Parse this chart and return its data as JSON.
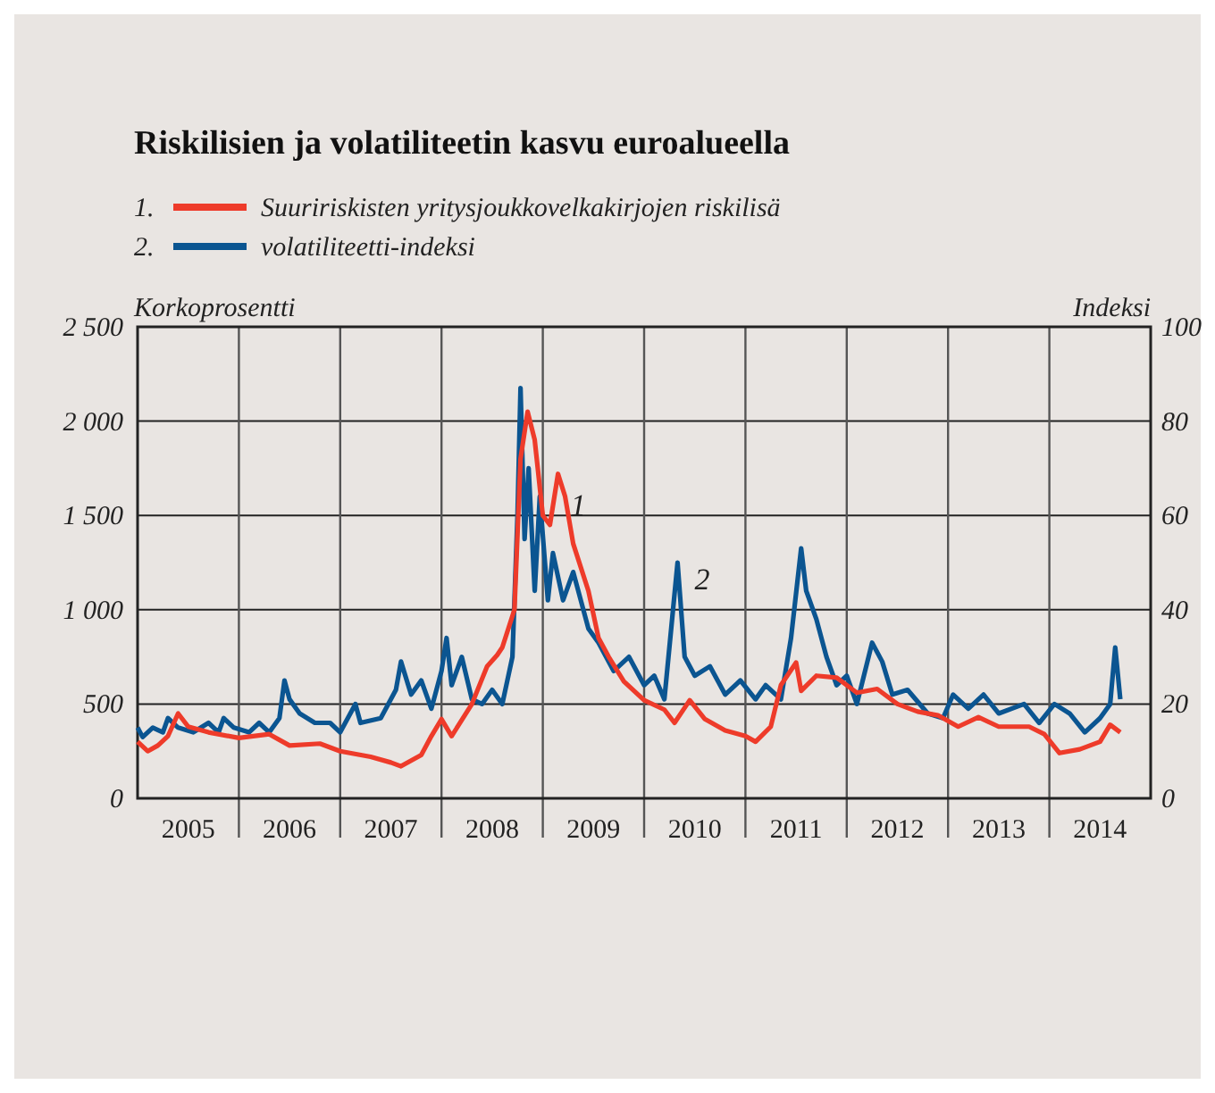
{
  "chart_data": {
    "type": "line",
    "title": "Riskilisien ja volatiliteetin kasvu euroalueella",
    "ylabel": "Korkoprosentti",
    "y2label": "Indeksi",
    "xlim": [
      2005,
      2015
    ],
    "xticks": [
      {
        "value": 2006,
        "label": null
      },
      {
        "value": 2007,
        "label": null
      },
      {
        "value": 2008,
        "label": null
      },
      {
        "value": 2009,
        "label": null
      },
      {
        "value": 2010,
        "label": null
      },
      {
        "value": 2011,
        "label": null
      },
      {
        "value": 2012,
        "label": null
      },
      {
        "value": 2013,
        "label": null
      },
      {
        "value": 2014,
        "label": null
      },
      {
        "value": 2005.5,
        "label": "2005"
      },
      {
        "value": 2006.5,
        "label": "2006"
      },
      {
        "value": 2007.5,
        "label": "2007"
      },
      {
        "value": 2008.5,
        "label": "2008"
      },
      {
        "value": 2009.5,
        "label": "2009"
      },
      {
        "value": 2010.5,
        "label": "2010"
      },
      {
        "value": 2011.5,
        "label": "2011"
      },
      {
        "value": 2012.5,
        "label": "2012"
      },
      {
        "value": 2013.5,
        "label": "2013"
      },
      {
        "value": 2014.5,
        "label": "2014"
      }
    ],
    "ylim": [
      0,
      2500
    ],
    "yticks": [
      0,
      {
        "value": 500,
        "label": "500"
      },
      {
        "value": 1000,
        "label": "1 000"
      },
      {
        "value": 1500,
        "label": "1 500"
      },
      {
        "value": 2000,
        "label": "2 000"
      },
      {
        "value": 2500,
        "label": "2 500"
      }
    ],
    "y2lim": [
      0,
      100
    ],
    "y2ticks": [
      0,
      20,
      40,
      60,
      80,
      100
    ],
    "grid": true,
    "legend": "top",
    "line_style": "solid",
    "annotations": [
      "1.",
      "2.",
      {
        "text": "1",
        "x": 2009.35,
        "y": 1500
      },
      "2"
    ],
    "series": [
      {
        "name": "Suuririskisten yritysjoukkovelkakirjojen riskilisä",
        "color": "#ee3b2a",
        "x": [
          2005,
          2005.1,
          2005.2,
          2005.3,
          2005.4,
          2005.5,
          2005.7,
          2006,
          2006.3,
          2006.5,
          2006.8,
          2007,
          2007.3,
          2007.5,
          2007.6,
          2007.8,
          2007.9,
          2008,
          2008.1,
          2008.3,
          2008.45,
          2008.55,
          2008.6,
          2008.72,
          2008.78,
          2008.85,
          2008.92,
          2009,
          2009.07,
          2009.15,
          2009.22,
          2009.3,
          2009.45,
          2009.55,
          2009.65,
          2009.8,
          2010,
          2010.2,
          2010.3,
          2010.45,
          2010.6,
          2010.8,
          2011,
          2011.1,
          2011.25,
          2011.35,
          2011.5,
          2011.55,
          2011.7,
          2011.9,
          2012.1,
          2012.3,
          2012.5,
          2012.7,
          2012.9,
          2013.1,
          2013.3,
          2013.5,
          2013.8,
          2013.95,
          2014.1,
          2014.3,
          2014.5,
          2014.6,
          2014.7
        ],
        "values": [
          300,
          250,
          280,
          330,
          450,
          380,
          350,
          320,
          340,
          280,
          290,
          250,
          220,
          190,
          170,
          230,
          330,
          420,
          330,
          500,
          700,
          760,
          800,
          1000,
          1800,
          2050,
          1900,
          1500,
          1450,
          1720,
          1600,
          1350,
          1100,
          850,
          750,
          620,
          520,
          470,
          400,
          520,
          420,
          360,
          330,
          300,
          380,
          600,
          720,
          570,
          650,
          640,
          560,
          580,
          500,
          460,
          440,
          380,
          430,
          380,
          380,
          340,
          240,
          260,
          300,
          390,
          350
        ]
      },
      {
        "name": "volatiliteetti-indeksi",
        "color": "#0b5591",
        "axis": "y2",
        "x": [
          2005,
          2005.05,
          2005.15,
          2005.25,
          2005.3,
          2005.4,
          2005.55,
          2005.7,
          2005.8,
          2005.85,
          2005.95,
          2006.1,
          2006.2,
          2006.3,
          2006.4,
          2006.45,
          2006.5,
          2006.6,
          2006.75,
          2006.9,
          2007,
          2007.15,
          2007.2,
          2007.4,
          2007.55,
          2007.6,
          2007.7,
          2007.8,
          2007.9,
          2008,
          2008.05,
          2008.1,
          2008.2,
          2008.3,
          2008.4,
          2008.5,
          2008.6,
          2008.7,
          2008.75,
          2008.78,
          2008.82,
          2008.86,
          2008.92,
          2008.97,
          2009.05,
          2009.1,
          2009.2,
          2009.3,
          2009.45,
          2009.55,
          2009.7,
          2009.85,
          2010,
          2010.1,
          2010.2,
          2010.33,
          2010.4,
          2010.5,
          2010.65,
          2010.8,
          2010.95,
          2011.1,
          2011.2,
          2011.35,
          2011.45,
          2011.55,
          2011.6,
          2011.7,
          2011.8,
          2011.9,
          2012,
          2012.1,
          2012.25,
          2012.35,
          2012.45,
          2012.6,
          2012.8,
          2012.95,
          2013.05,
          2013.2,
          2013.35,
          2013.5,
          2013.75,
          2013.9,
          2014.05,
          2014.2,
          2014.35,
          2014.5,
          2014.6,
          2014.65,
          2014.7
        ],
        "values": [
          15,
          13,
          15,
          14,
          17,
          15,
          14,
          16,
          14,
          17,
          15,
          14,
          16,
          14,
          17,
          25,
          21,
          18,
          16,
          16,
          14,
          20,
          16,
          17,
          23,
          29,
          22,
          25,
          19,
          27,
          34,
          24,
          30,
          21,
          20,
          23,
          20,
          30,
          60,
          87,
          55,
          70,
          44,
          64,
          42,
          52,
          42,
          48,
          36,
          33,
          27,
          30,
          24,
          26,
          21,
          50,
          30,
          26,
          28,
          22,
          25,
          21,
          24,
          21,
          34,
          53,
          44,
          38,
          30,
          24,
          26,
          20,
          33,
          29,
          22,
          23,
          18,
          17,
          22,
          19,
          22,
          18,
          20,
          16,
          20,
          18,
          14,
          17,
          20,
          32,
          21
        ]
      }
    ]
  }
}
